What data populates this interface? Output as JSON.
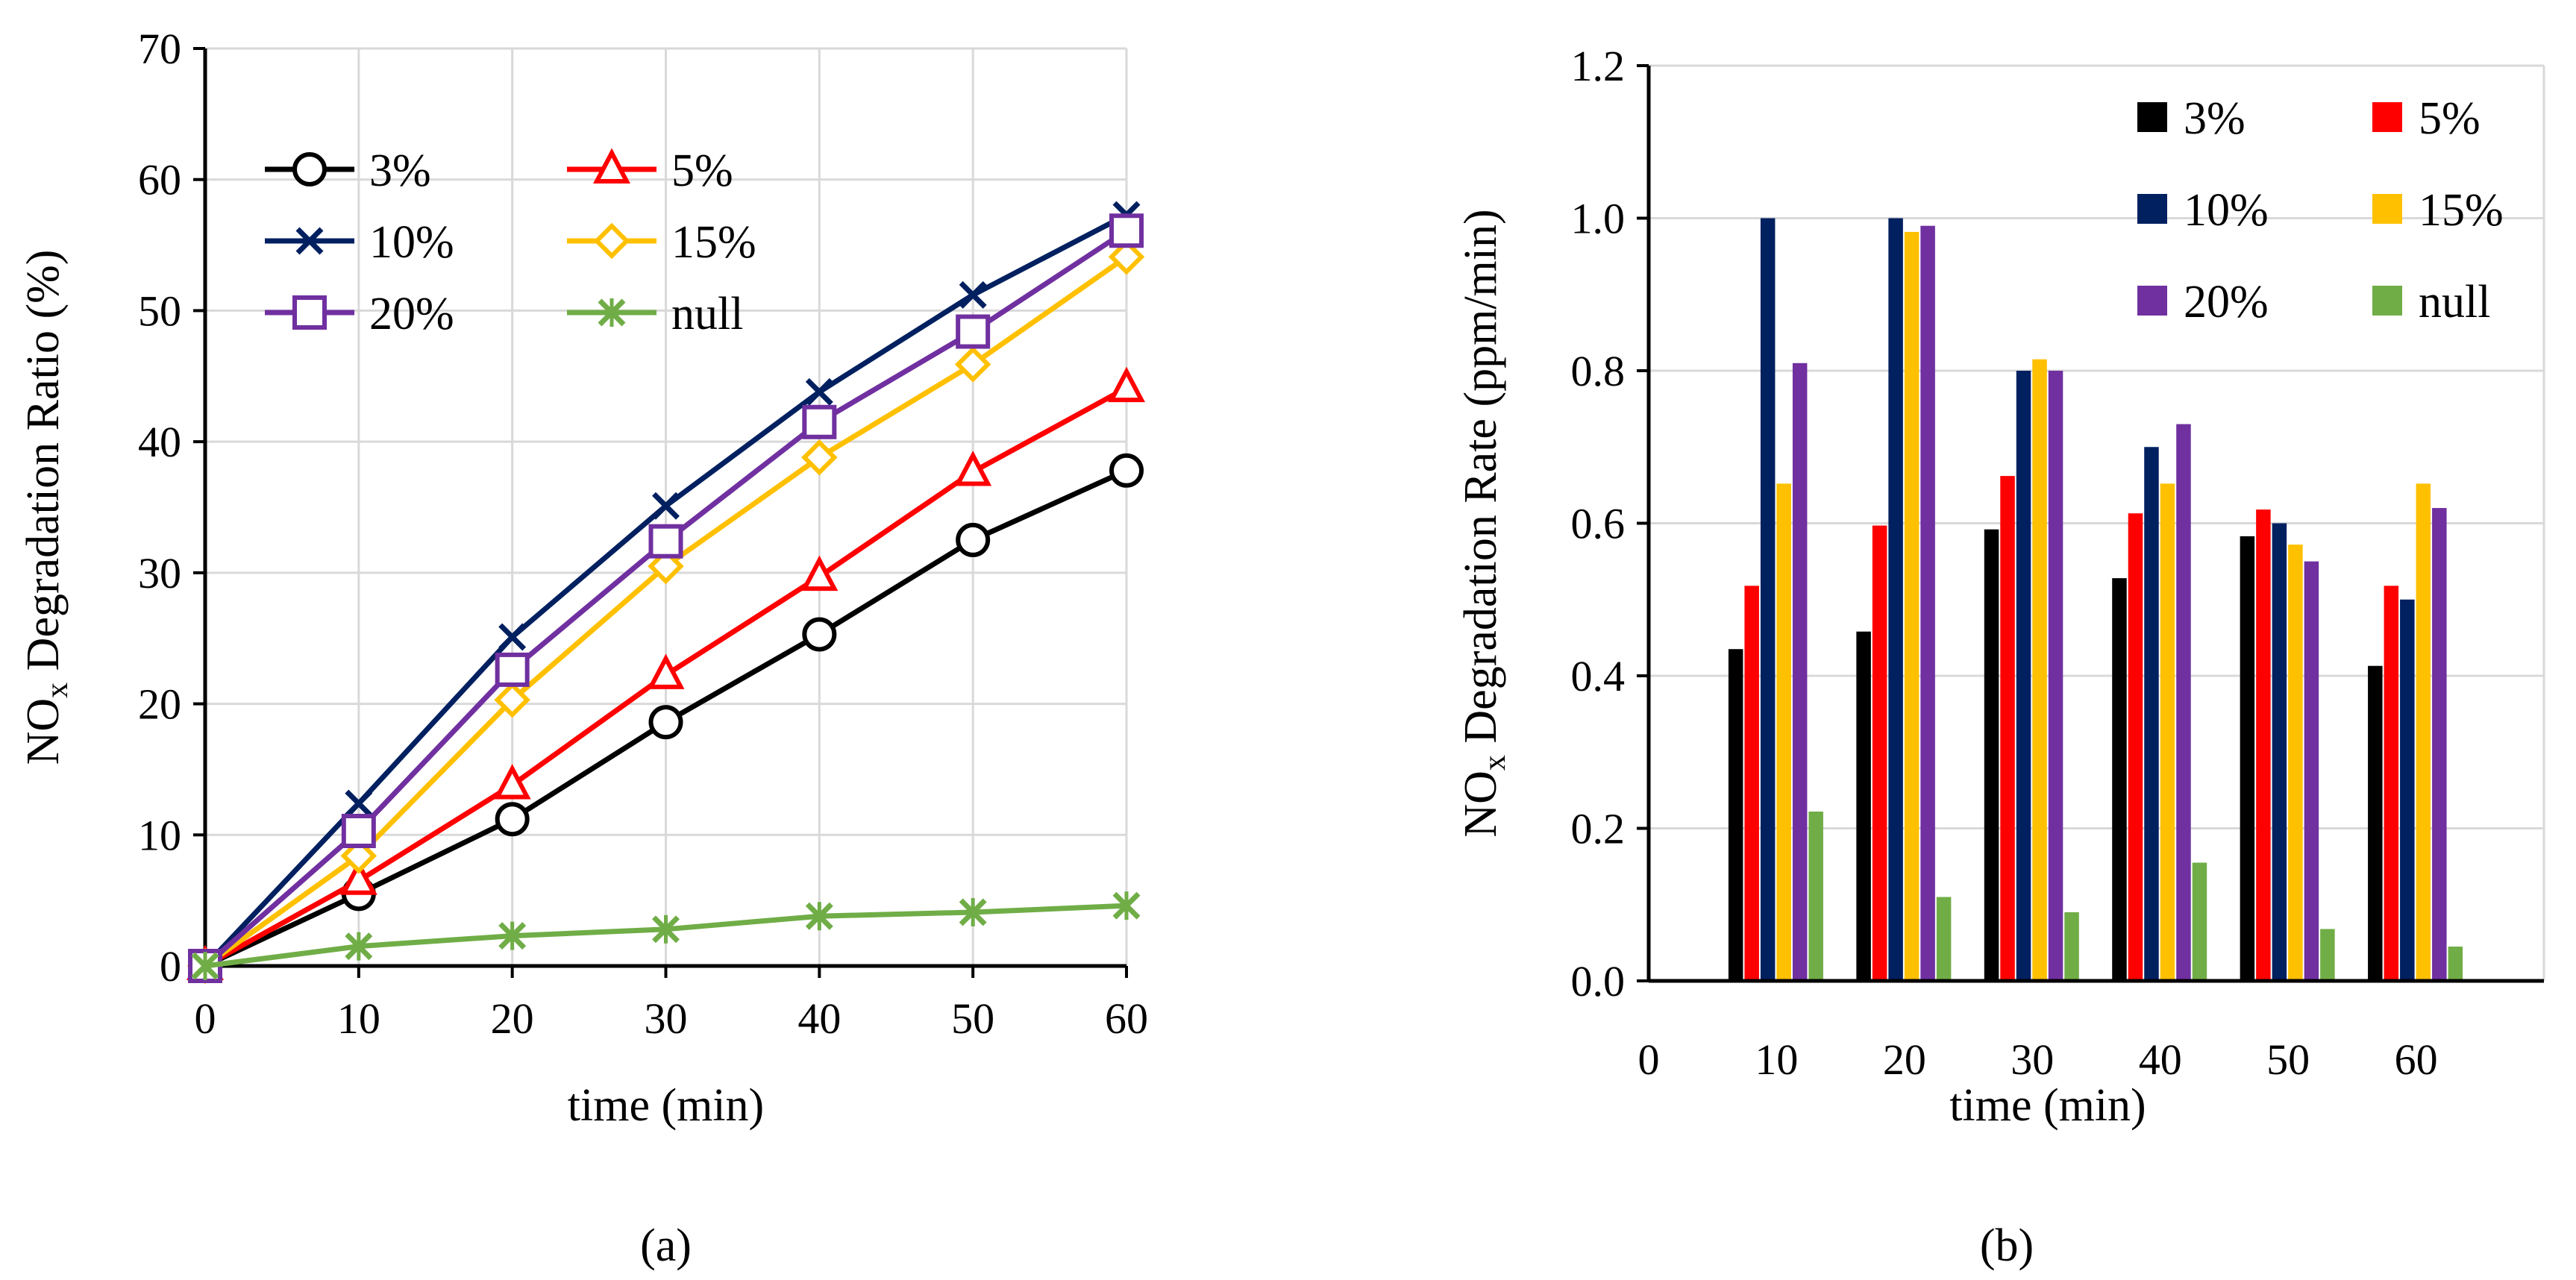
{
  "chart_data": [
    {
      "type": "line",
      "panel_label": "(a)",
      "xlabel": "time  (min)",
      "ylabel_main": "NO",
      "ylabel_sub": "x",
      "ylabel_rest": "  Degradation  Ratio  (%)",
      "x": [
        0,
        10,
        20,
        30,
        40,
        50,
        60
      ],
      "xticks": [
        "0",
        "10",
        "20",
        "30",
        "40",
        "50",
        "60"
      ],
      "ylim": [
        0,
        70
      ],
      "yticks": [
        "0",
        "10",
        "20",
        "30",
        "40",
        "50",
        "60",
        "70"
      ],
      "grid": true,
      "legend_position": "top-left",
      "series": [
        {
          "name": "3%",
          "color": "#000000",
          "marker": "circle",
          "values": [
            0,
            5.5,
            11.2,
            18.6,
            25.3,
            32.5,
            37.8
          ]
        },
        {
          "name": "5%",
          "color": "#ff0000",
          "marker": "triangle",
          "values": [
            0,
            6.5,
            13.8,
            22.2,
            29.7,
            37.7,
            44.1
          ]
        },
        {
          "name": "10%",
          "color": "#002060",
          "marker": "x",
          "values": [
            0,
            12.4,
            25.1,
            35.1,
            43.8,
            51.2,
            57.3
          ]
        },
        {
          "name": "15%",
          "color": "#ffc000",
          "marker": "diamond",
          "values": [
            0,
            8.4,
            20.3,
            30.5,
            38.8,
            45.9,
            54.1
          ]
        },
        {
          "name": "20%",
          "color": "#7030a0",
          "marker": "square",
          "values": [
            0,
            10.3,
            22.6,
            32.4,
            41.5,
            48.4,
            56.1
          ]
        },
        {
          "name": "null",
          "color": "#70ad47",
          "marker": "star",
          "values": [
            0,
            1.5,
            2.3,
            2.8,
            3.8,
            4.1,
            4.6
          ]
        }
      ]
    },
    {
      "type": "bar",
      "panel_label": "(b)",
      "xlabel": "time  (min)",
      "ylabel_main": "NO",
      "ylabel_sub": "x",
      "ylabel_rest": "  Degradation  Rate  (ppm/min)",
      "categories": [
        "10",
        "20",
        "30",
        "40",
        "50",
        "60"
      ],
      "x_zero_label": "0",
      "ylim": [
        0,
        1.2
      ],
      "yticks": [
        "0.0",
        "0.2",
        "0.4",
        "0.6",
        "0.8",
        "1.0",
        "1.2"
      ],
      "grid": true,
      "legend_position": "top-right",
      "series": [
        {
          "name": "3%",
          "color": "#000000",
          "values": [
            0.435,
            0.458,
            0.592,
            0.528,
            0.583,
            0.413
          ]
        },
        {
          "name": "5%",
          "color": "#ff0000",
          "values": [
            0.518,
            0.597,
            0.662,
            0.613,
            0.618,
            0.518
          ]
        },
        {
          "name": "10%",
          "color": "#002060",
          "values": [
            1.0,
            1.0,
            0.8,
            0.7,
            0.6,
            0.5
          ]
        },
        {
          "name": "15%",
          "color": "#ffc000",
          "values": [
            0.652,
            0.982,
            0.815,
            0.652,
            0.572,
            0.652
          ]
        },
        {
          "name": "20%",
          "color": "#7030a0",
          "values": [
            0.81,
            0.99,
            0.8,
            0.73,
            0.55,
            0.62
          ]
        },
        {
          "name": "null",
          "color": "#70ad47",
          "values": [
            0.222,
            0.11,
            0.09,
            0.155,
            0.068,
            0.045
          ]
        }
      ]
    }
  ]
}
